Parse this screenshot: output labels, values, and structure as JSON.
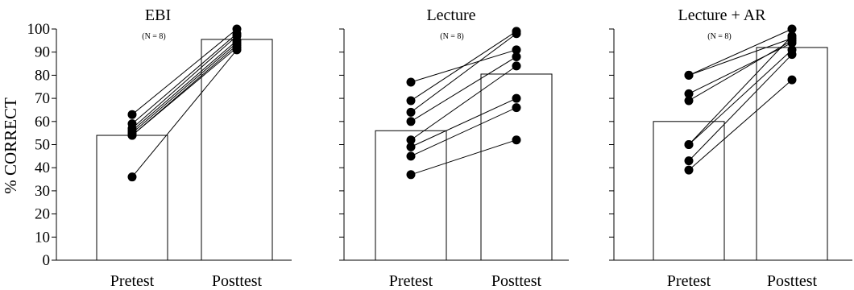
{
  "figure": {
    "ylabel": "% CORRECT"
  },
  "chart_data": [
    {
      "type": "bar",
      "title": "EBI",
      "subtitle": "(N = 8)",
      "categories": [
        "Pretest",
        "Posttest"
      ],
      "values": [
        54,
        95.5
      ],
      "ylabel": "% CORRECT",
      "ylim": [
        0,
        100
      ],
      "yticks": [
        "0",
        "10",
        "20",
        "30",
        "40",
        "50",
        "60",
        "70",
        "80",
        "90",
        "100"
      ],
      "subjects": [
        {
          "pre": 63,
          "post": 100
        },
        {
          "pre": 59,
          "post": 98
        },
        {
          "pre": 57,
          "post": 97
        },
        {
          "pre": 56,
          "post": 95
        },
        {
          "pre": 55,
          "post": 94
        },
        {
          "pre": 54,
          "post": 93
        },
        {
          "pre": 54,
          "post": 92
        },
        {
          "pre": 36,
          "post": 91
        }
      ]
    },
    {
      "type": "bar",
      "title": "Lecture",
      "subtitle": "(N = 8)",
      "categories": [
        "Pretest",
        "Posttest"
      ],
      "values": [
        56,
        80.5
      ],
      "ylim": [
        0,
        100
      ],
      "subjects": [
        {
          "pre": 77,
          "post": 91
        },
        {
          "pre": 69,
          "post": 99
        },
        {
          "pre": 64,
          "post": 98
        },
        {
          "pre": 60,
          "post": 88
        },
        {
          "pre": 52,
          "post": 84
        },
        {
          "pre": 49,
          "post": 70
        },
        {
          "pre": 45,
          "post": 66
        },
        {
          "pre": 37,
          "post": 52
        }
      ]
    },
    {
      "type": "bar",
      "title": "Lecture + AR",
      "subtitle": "(N = 8)",
      "categories": [
        "Pretest",
        "Posttest"
      ],
      "values": [
        60,
        92
      ],
      "ylim": [
        0,
        100
      ],
      "subjects": [
        {
          "pre": 80,
          "post": 96
        },
        {
          "pre": 80,
          "post": 100
        },
        {
          "pre": 72,
          "post": 94
        },
        {
          "pre": 69,
          "post": 95
        },
        {
          "pre": 50,
          "post": 97
        },
        {
          "pre": 50,
          "post": 91
        },
        {
          "pre": 43,
          "post": 89
        },
        {
          "pre": 39,
          "post": 78
        }
      ]
    }
  ]
}
